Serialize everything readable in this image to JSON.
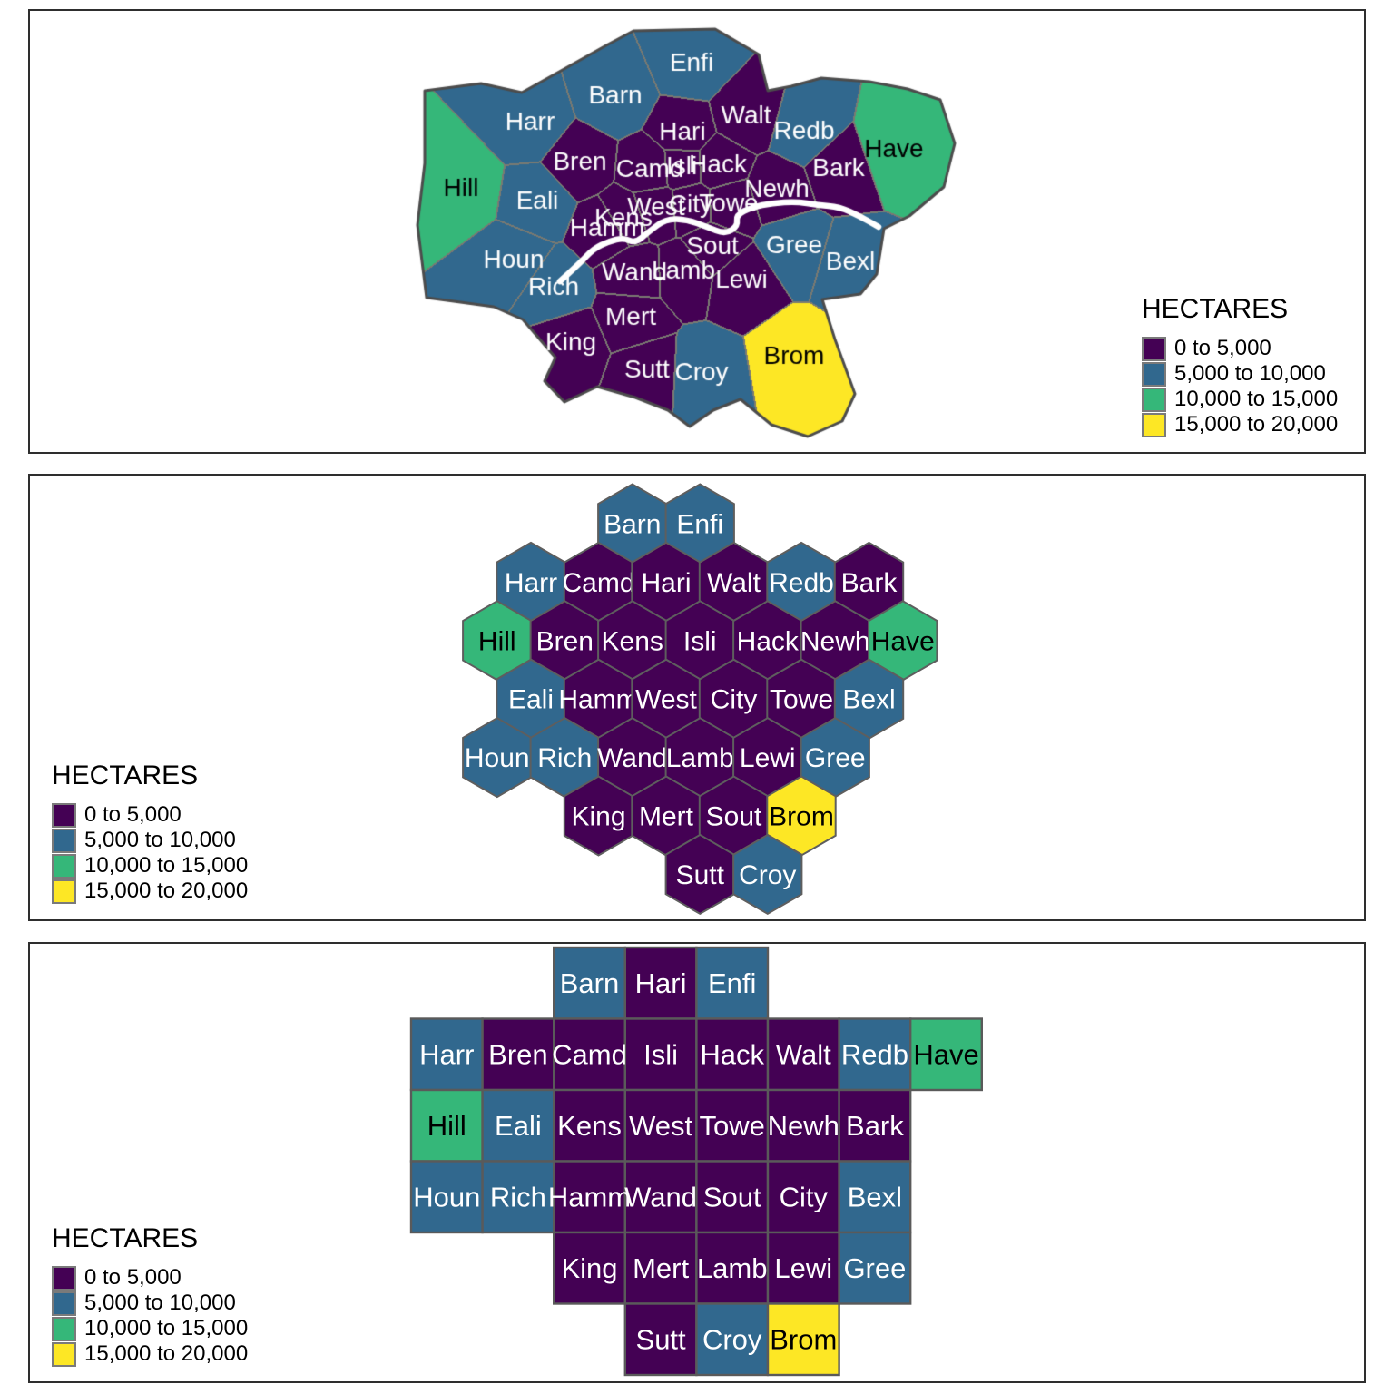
{
  "legend": {
    "title": "HECTARES"
  },
  "chart_data": {
    "type": "heatmap",
    "subtype": [
      "geographic-choropleth",
      "hex-cartogram",
      "square-cartogram"
    ],
    "variable": "HECTARES",
    "legend_position": [
      "right",
      "left",
      "left"
    ],
    "bins": [
      {
        "label": "0 to 5,000",
        "min": 0,
        "max": 5000,
        "color": "#440154",
        "text_color": "#ffffff"
      },
      {
        "label": "5,000 to 10,000",
        "min": 5000,
        "max": 10000,
        "color": "#31688E",
        "text_color": "#ffffff"
      },
      {
        "label": "10,000 to 15,000",
        "min": 10000,
        "max": 15000,
        "color": "#35B779",
        "text_color": "#000000"
      },
      {
        "label": "15,000 to 20,000",
        "min": 15000,
        "max": 20000,
        "color": "#FDE725",
        "text_color": "#000000"
      }
    ],
    "boroughs": {
      "Enfi": 1,
      "Barn": 1,
      "Harr": 1,
      "Hari": 0,
      "Walt": 0,
      "Redb": 1,
      "Have": 2,
      "Hill": 2,
      "Bren": 0,
      "Camd": 0,
      "Isli": 0,
      "Hack": 0,
      "Newh": 0,
      "Bark": 0,
      "Eali": 1,
      "Kens": 0,
      "West": 0,
      "City": 0,
      "Towe": 0,
      "Hamm": 0,
      "Houn": 1,
      "Rich": 1,
      "Wand": 0,
      "Lamb": 0,
      "Sout": 0,
      "Lewi": 0,
      "Gree": 1,
      "Bexl": 1,
      "Mert": 0,
      "King": 0,
      "Sutt": 0,
      "Croy": 1,
      "Brom": 3
    },
    "views": {
      "map": {
        "seeds": [
          [
            "Enfi",
            762,
            70
          ],
          [
            "Barn",
            678,
            106
          ],
          [
            "Harr",
            584,
            135
          ],
          [
            "Hari",
            752,
            146
          ],
          [
            "Walt",
            822,
            128
          ],
          [
            "Redb",
            886,
            145
          ],
          [
            "Have",
            985,
            165
          ],
          [
            "Hill",
            508,
            208
          ],
          [
            "Bren",
            639,
            179
          ],
          [
            "Camd",
            716,
            187
          ],
          [
            "Isli",
            751,
            184
          ],
          [
            "Hack",
            791,
            182
          ],
          [
            "Newh",
            856,
            209
          ],
          [
            "Bark",
            924,
            186
          ],
          [
            "Eali",
            592,
            222
          ],
          [
            "Kens",
            687,
            241
          ],
          [
            "West",
            723,
            229
          ],
          [
            "City",
            761,
            226
          ],
          [
            "Towe",
            803,
            225
          ],
          [
            "Hamm",
            669,
            252
          ],
          [
            "Houn",
            566,
            287
          ],
          [
            "Rich",
            610,
            317
          ],
          [
            "Wand",
            699,
            301
          ],
          [
            "Lamb",
            753,
            299
          ],
          [
            "Sout",
            785,
            272
          ],
          [
            "Lewi",
            817,
            309
          ],
          [
            "Gree",
            875,
            271
          ],
          [
            "Bexl",
            937,
            289
          ],
          [
            "Mert",
            695,
            350
          ],
          [
            "King",
            629,
            378
          ],
          [
            "Sutt",
            713,
            408
          ],
          [
            "Croy",
            773,
            411
          ],
          [
            "Brom",
            875,
            393
          ]
        ],
        "outline": [
          [
            468,
            100
          ],
          [
            530,
            92
          ],
          [
            575,
            102
          ],
          [
            618,
            78
          ],
          [
            668,
            50
          ],
          [
            698,
            34
          ],
          [
            788,
            32
          ],
          [
            836,
            60
          ],
          [
            846,
            100
          ],
          [
            872,
            95
          ],
          [
            905,
            86
          ],
          [
            958,
            90
          ],
          [
            1000,
            98
          ],
          [
            1036,
            110
          ],
          [
            1052,
            158
          ],
          [
            1040,
            206
          ],
          [
            1002,
            238
          ],
          [
            974,
            252
          ],
          [
            966,
            302
          ],
          [
            948,
            324
          ],
          [
            906,
            330
          ],
          [
            920,
            374
          ],
          [
            942,
            434
          ],
          [
            928,
            464
          ],
          [
            890,
            481
          ],
          [
            850,
            468
          ],
          [
            816,
            440
          ],
          [
            786,
            452
          ],
          [
            760,
            470
          ],
          [
            736,
            452
          ],
          [
            700,
            438
          ],
          [
            658,
            426
          ],
          [
            622,
            443
          ],
          [
            600,
            420
          ],
          [
            612,
            394
          ],
          [
            576,
            352
          ],
          [
            544,
            338
          ],
          [
            500,
            332
          ],
          [
            470,
            328
          ],
          [
            460,
            248
          ],
          [
            468,
            180
          ]
        ],
        "river": [
          [
            617,
            310
          ],
          [
            638,
            291
          ],
          [
            654,
            274
          ],
          [
            671,
            266
          ],
          [
            687,
            262
          ],
          [
            700,
            268
          ],
          [
            714,
            256
          ],
          [
            734,
            241
          ],
          [
            757,
            242
          ],
          [
            779,
            250
          ],
          [
            799,
            258
          ],
          [
            813,
            249
          ],
          [
            811,
            237
          ],
          [
            829,
            228
          ],
          [
            851,
            224
          ],
          [
            877,
            222
          ],
          [
            901,
            226
          ],
          [
            925,
            228
          ],
          [
            947,
            238
          ],
          [
            968,
            250
          ]
        ]
      },
      "hex": {
        "rows": [
          {
            "offset": 1.5,
            "items": [
              "Barn",
              "Enfi"
            ]
          },
          {
            "offset": 0,
            "items": [
              "Harr",
              "Camd",
              "Hari",
              "Walt",
              "Redb",
              "Bark"
            ]
          },
          {
            "offset": -0.5,
            "items": [
              "Hill",
              "Bren",
              "Kens",
              "Isli",
              "Hack",
              "Newh",
              "Have"
            ]
          },
          {
            "offset": 0,
            "items": [
              "Eali",
              "Hamm",
              "West",
              "City",
              "Towe",
              "Bexl"
            ]
          },
          {
            "offset": -0.5,
            "items": [
              "Houn",
              "Rich",
              "Wand",
              "Lamb",
              "Lewi",
              "Gree"
            ]
          },
          {
            "offset": 1,
            "items": [
              "King",
              "Mert",
              "Sout",
              "Brom"
            ]
          },
          {
            "offset": 2.5,
            "items": [
              "Sutt",
              "Croy"
            ]
          }
        ]
      },
      "grid": {
        "rows": [
          {
            "start": 2,
            "items": [
              "Barn",
              "Hari",
              "Enfi"
            ]
          },
          {
            "start": 0,
            "items": [
              "Harr",
              "Bren",
              "Camd",
              "Isli",
              "Hack",
              "Walt",
              "Redb",
              "Have"
            ]
          },
          {
            "start": 0,
            "items": [
              "Hill",
              "Eali",
              "Kens",
              "West",
              "Towe",
              "Newh",
              "Bark"
            ]
          },
          {
            "start": 0,
            "items": [
              "Houn",
              "Rich",
              "Hamm",
              "Wand",
              "Sout",
              "City",
              "Bexl"
            ]
          },
          {
            "start": 2,
            "items": [
              "King",
              "Mert",
              "Lamb",
              "Lewi",
              "Gree"
            ]
          },
          {
            "start": 3,
            "items": [
              "Sutt",
              "Croy",
              "Brom"
            ]
          }
        ]
      }
    }
  }
}
